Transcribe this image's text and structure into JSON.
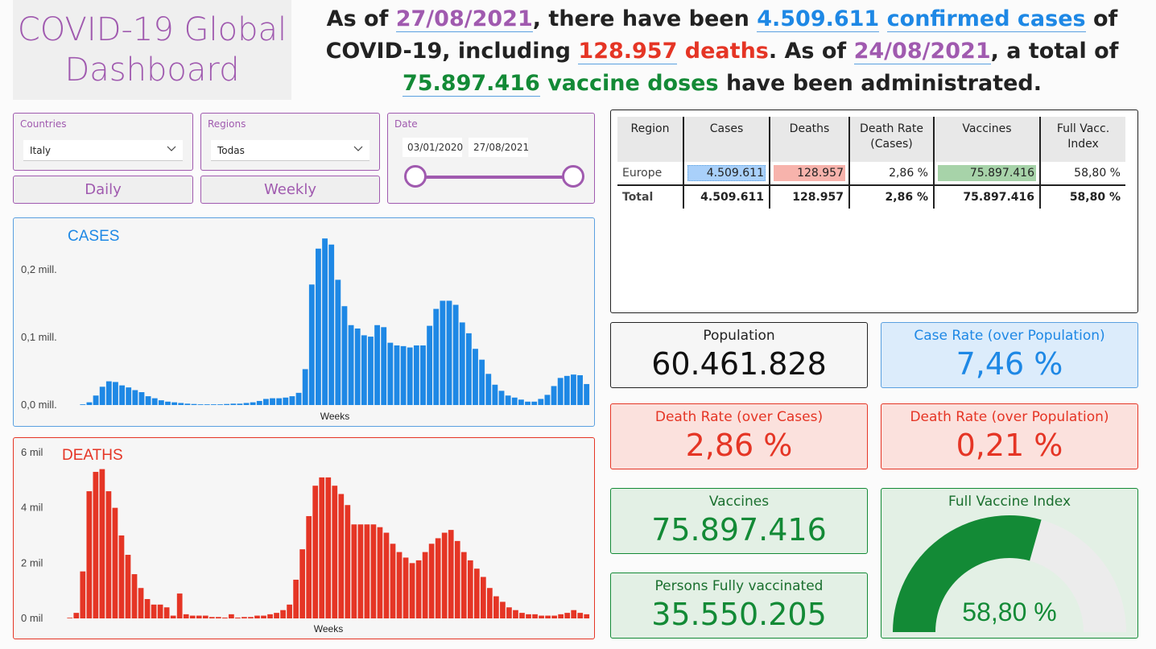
{
  "title": "COVID-19 Global Dashboard",
  "headline": {
    "p1": "As of ",
    "cases_date": "27/08/2021",
    "p2": ", there have been ",
    "cases_total": "4.509.611",
    "p3": " ",
    "cases_label": "confirmed cases",
    "p4": " of COVID-19, including ",
    "deaths_total": "128.957",
    "p5": " ",
    "deaths_label": "deaths",
    "p6": ". As of ",
    "vacc_date": "24/08/2021",
    "p7": ", a total of ",
    "vacc_total": "75.897.416",
    "p8": " ",
    "vacc_label": "vaccine doses",
    "p9": " have been administrated."
  },
  "filters": {
    "countries": {
      "title": "Countries",
      "value": "Italy"
    },
    "regions": {
      "title": "Regions",
      "value": "Todas"
    },
    "date": {
      "title": "Date",
      "start": "03/01/2020",
      "end": "27/08/2021"
    },
    "daily_label": "Daily",
    "weekly_label": "Weekly"
  },
  "colors": {
    "purple": "#a05aaf",
    "blue": "#1e88e5",
    "red": "#e53525",
    "green": "#138a36"
  },
  "table": {
    "headers": [
      "Region",
      "Cases",
      "Deaths",
      "Death Rate (Cases)",
      "Vaccines",
      "Full Vacc. Index"
    ],
    "rows": [
      [
        "Europe",
        "4.509.611",
        "128.957",
        "2,86 %",
        "75.897.416",
        "58,80 %"
      ]
    ],
    "total": [
      "Total",
      "4.509.611",
      "128.957",
      "2,86 %",
      "75.897.416",
      "58,80 %"
    ]
  },
  "kpis": {
    "population": {
      "title": "Population",
      "value": "60.461.828"
    },
    "case_rate": {
      "title": "Case Rate (over Population)",
      "value": "7,46 %"
    },
    "death_rate_cases": {
      "title": "Death Rate (over Cases)",
      "value": "2,86 %"
    },
    "death_rate_pop": {
      "title": "Death Rate (over Population)",
      "value": "0,21 %"
    },
    "vaccines": {
      "title": "Vaccines",
      "value": "75.897.416"
    },
    "fully_vaccinated": {
      "title": "Persons Fully vaccinated",
      "value": "35.550.205"
    },
    "full_vaccine_index": {
      "title": "Full Vaccine Index",
      "value": "58,80 %",
      "fraction": 0.588
    }
  },
  "chart_data": [
    {
      "type": "bar",
      "title": "CASES",
      "xlabel": "Weeks",
      "ylabel": "",
      "ylim": [
        0,
        0.245
      ],
      "yticks": [
        "0,0 mill.",
        "0,1 mill.",
        "0,2 mill."
      ],
      "ytick_values": [
        0,
        0.1,
        0.2
      ],
      "color": "#1e88e5",
      "values": [
        0.001,
        0.004,
        0.014,
        0.027,
        0.035,
        0.034,
        0.029,
        0.026,
        0.022,
        0.019,
        0.013,
        0.01,
        0.007,
        0.005,
        0.004,
        0.003,
        0.002,
        0.0015,
        0.001,
        0.001,
        0.001,
        0.001,
        0.0015,
        0.002,
        0.002,
        0.003,
        0.004,
        0.006,
        0.009,
        0.01,
        0.01,
        0.011,
        0.013,
        0.018,
        0.053,
        0.178,
        0.231,
        0.246,
        0.237,
        0.185,
        0.146,
        0.118,
        0.113,
        0.103,
        0.101,
        0.118,
        0.115,
        0.092,
        0.088,
        0.087,
        0.085,
        0.088,
        0.088,
        0.117,
        0.142,
        0.154,
        0.154,
        0.148,
        0.122,
        0.106,
        0.083,
        0.067,
        0.046,
        0.03,
        0.021,
        0.014,
        0.011,
        0.008,
        0.005,
        0.005,
        0.009,
        0.015,
        0.028,
        0.04,
        0.043,
        0.045,
        0.044,
        0.031
      ]
    },
    {
      "type": "bar",
      "title": "DEATHS",
      "xlabel": "Weeks",
      "ylabel": "",
      "ylim": [
        0,
        6
      ],
      "yticks": [
        "0 mil",
        "2 mil",
        "4 mil",
        "6 mil"
      ],
      "ytick_values": [
        0,
        2,
        4,
        6
      ],
      "color": "#e53525",
      "values": [
        0,
        0.2,
        1.7,
        4.6,
        5.3,
        5.4,
        4.6,
        4.0,
        3.0,
        2.3,
        1.6,
        1.1,
        0.7,
        0.5,
        0.5,
        0.4,
        0.1,
        0.9,
        0.15,
        0.1,
        0.1,
        0.1,
        0.05,
        0.05,
        0.03,
        0.15,
        0.03,
        0.05,
        0.05,
        0.1,
        0.1,
        0.15,
        0.2,
        0.3,
        0.5,
        1.4,
        2.5,
        3.7,
        4.8,
        5.1,
        5.1,
        4.8,
        4.5,
        4.1,
        3.4,
        3.4,
        3.4,
        3.4,
        3.3,
        3.1,
        2.7,
        2.4,
        2.2,
        2.0,
        2.1,
        2.4,
        2.7,
        2.9,
        3.1,
        3.2,
        2.8,
        2.4,
        2.1,
        1.8,
        1.5,
        1.1,
        0.8,
        0.6,
        0.4,
        0.3,
        0.2,
        0.15,
        0.15,
        0.1,
        0.1,
        0.1,
        0.15,
        0.2,
        0.3,
        0.2,
        0.15
      ]
    }
  ]
}
